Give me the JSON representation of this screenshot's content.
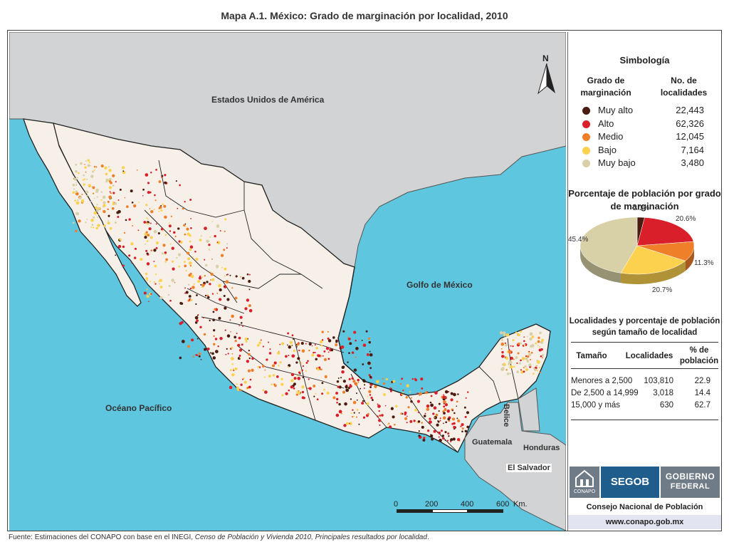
{
  "title": "Mapa A.1. México: Grado de marginación por localidad, 2010",
  "map": {
    "labels": {
      "usa": "Estados Unidos de América",
      "gulf": "Golfo de México",
      "pacific": "Océano Pacífico",
      "guatemala": "Guatemala",
      "honduras": "Honduras",
      "el_salvador": "El Salvador",
      "belice": "Belice"
    },
    "north": "N",
    "scale": {
      "ticks": [
        "0",
        "200",
        "400",
        "600"
      ],
      "unit": "Km."
    }
  },
  "legend": {
    "title": "Simbología",
    "col_grado": "Grado de marginación",
    "col_num": "No. de localidades",
    "rows": [
      {
        "name": "Muy alto",
        "count": "22,443",
        "color": "#4a1b10"
      },
      {
        "name": "Alto",
        "count": "62,326",
        "color": "#d9202a"
      },
      {
        "name": "Medio",
        "count": "12,045",
        "color": "#f07f2a"
      },
      {
        "name": "Bajo",
        "count": "7,164",
        "color": "#fcd14e"
      },
      {
        "name": "Muy bajo",
        "count": "3,480",
        "color": "#d8d0a6"
      }
    ]
  },
  "pie": {
    "title": "Porcentaje de población por grado de marginación",
    "slices": [
      {
        "label": "2.1%",
        "value": 2.1,
        "color": "#4a1b10"
      },
      {
        "label": "20.6%",
        "value": 20.6,
        "color": "#d9202a"
      },
      {
        "label": "11.3%",
        "value": 11.3,
        "color": "#f07f2a"
      },
      {
        "label": "20.7%",
        "value": 20.7,
        "color": "#fcd14e"
      },
      {
        "label": "45.4%",
        "value": 45.4,
        "color": "#d8d0a6"
      }
    ]
  },
  "size_table": {
    "title": "Localidades y porcentaje de población según tamaño de localidad",
    "headers": {
      "tamano": "Tamaño",
      "localidades": "Localidades",
      "poblacion": "% de población"
    },
    "rows": [
      {
        "tamano": "Menores a 2,500",
        "localidades": "103,810",
        "poblacion": "22.9"
      },
      {
        "tamano": "De 2,500 a 14,999",
        "localidades": "3,018",
        "poblacion": "14.4"
      },
      {
        "tamano": "15,000 y más",
        "localidades": "630",
        "poblacion": "62.7"
      }
    ]
  },
  "logos": {
    "conapo": "CONAPO",
    "segob": "SEGOB",
    "gobierno": "GOBIERNO",
    "federal": "FEDERAL"
  },
  "footer": {
    "org": "Consejo Nacional de Población",
    "url": "www.conapo.gob.mx"
  },
  "source": {
    "prefix": "Fuente: Estimaciones del CONAPO con base en el INEGI, ",
    "italic": "Censo de Población y Vivienda 2010, Principales resultados por localidad",
    "suffix": "."
  }
}
